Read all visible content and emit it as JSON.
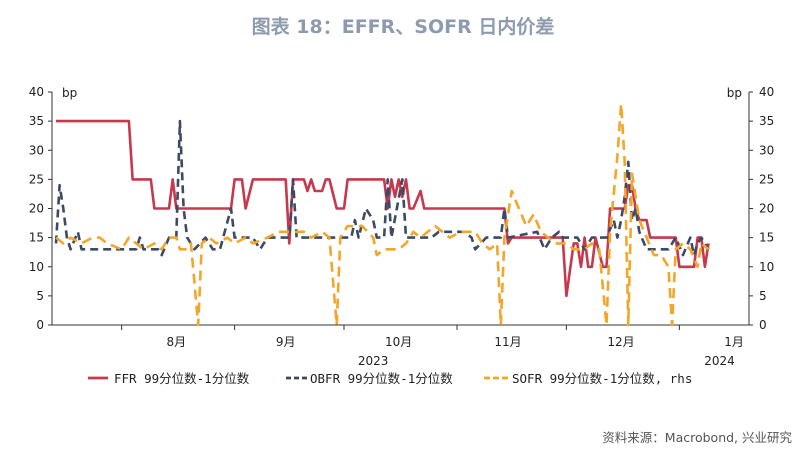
{
  "chart_data": {
    "type": "line",
    "title": "图表 18：EFFR、SOFR 日内价差",
    "unit_left": "bp",
    "unit_right": "bp",
    "y_left": {
      "min": 0,
      "max": 40,
      "ticks": [
        0,
        5,
        10,
        15,
        20,
        25,
        30,
        35,
        40
      ]
    },
    "y_right": {
      "min": 0,
      "max": 40,
      "ticks": [
        0,
        5,
        10,
        15,
        20,
        25,
        30,
        35,
        40
      ]
    },
    "x_range": [
      "2023-07-14",
      "2024-01-19"
    ],
    "month_labels": [
      {
        "label": "8月",
        "date": "2023-08-16"
      },
      {
        "label": "9月",
        "date": "2023-09-15"
      },
      {
        "label": "10月",
        "date": "2023-10-16"
      },
      {
        "label": "11月",
        "date": "2023-11-15"
      },
      {
        "label": "12月",
        "date": "2023-12-16"
      },
      {
        "label": "1月",
        "date": "2024-01-16"
      }
    ],
    "month_ticks": [
      "2023-08-01",
      "2023-09-01",
      "2023-10-01",
      "2023-11-01",
      "2023-12-01",
      "2024-01-01"
    ],
    "year_labels": [
      {
        "label": "2023",
        "date": "2023-10-09"
      },
      {
        "label": "2024",
        "date": "2024-01-12"
      }
    ],
    "series": [
      {
        "name": "FFR 99分位数-1分位数",
        "color": "#c8384d",
        "dash": "solid",
        "axis": "left",
        "points": [
          [
            "2023-07-14",
            35
          ],
          [
            "2023-07-31",
            35
          ],
          [
            "2023-08-03",
            35
          ],
          [
            "2023-08-04",
            25
          ],
          [
            "2023-08-08",
            25
          ],
          [
            "2023-08-09",
            25
          ],
          [
            "2023-08-10",
            20
          ],
          [
            "2023-08-14",
            20
          ],
          [
            "2023-08-15",
            25
          ],
          [
            "2023-08-16",
            20
          ],
          [
            "2023-08-22",
            20
          ],
          [
            "2023-08-31",
            20
          ],
          [
            "2023-09-01",
            25
          ],
          [
            "2023-09-03",
            25
          ],
          [
            "2023-09-04",
            20
          ],
          [
            "2023-09-06",
            25
          ],
          [
            "2023-09-15",
            25
          ],
          [
            "2023-09-16",
            14
          ],
          [
            "2023-09-17",
            25
          ],
          [
            "2023-09-20",
            25
          ],
          [
            "2023-09-21",
            23
          ],
          [
            "2023-09-22",
            25
          ],
          [
            "2023-09-23",
            23
          ],
          [
            "2023-09-25",
            23
          ],
          [
            "2023-09-26",
            25
          ],
          [
            "2023-09-27",
            25
          ],
          [
            "2023-09-29",
            20
          ],
          [
            "2023-10-01",
            20
          ],
          [
            "2023-10-02",
            25
          ],
          [
            "2023-10-12",
            25
          ],
          [
            "2023-10-13",
            20
          ],
          [
            "2023-10-14",
            25
          ],
          [
            "2023-10-15",
            22
          ],
          [
            "2023-10-16",
            25
          ],
          [
            "2023-10-17",
            22
          ],
          [
            "2023-10-18",
            25
          ],
          [
            "2023-10-19",
            20
          ],
          [
            "2023-10-20",
            20
          ],
          [
            "2023-10-22",
            23
          ],
          [
            "2023-10-23",
            20
          ],
          [
            "2023-11-13",
            20
          ],
          [
            "2023-11-14",
            20
          ],
          [
            "2023-11-15",
            14
          ],
          [
            "2023-11-16",
            15
          ],
          [
            "2023-11-30",
            15
          ],
          [
            "2023-12-01",
            5
          ],
          [
            "2023-12-03",
            14
          ],
          [
            "2023-12-04",
            14
          ],
          [
            "2023-12-05",
            10
          ],
          [
            "2023-12-06",
            15
          ],
          [
            "2023-12-07",
            10
          ],
          [
            "2023-12-08",
            10
          ],
          [
            "2023-12-09",
            15
          ],
          [
            "2023-12-11",
            10
          ],
          [
            "2023-12-12",
            10
          ],
          [
            "2023-12-13",
            20
          ],
          [
            "2023-12-17",
            20
          ],
          [
            "2023-12-18",
            24
          ],
          [
            "2023-12-19",
            24
          ],
          [
            "2023-12-20",
            20
          ],
          [
            "2023-12-21",
            18
          ],
          [
            "2023-12-23",
            18
          ],
          [
            "2023-12-24",
            15
          ],
          [
            "2023-12-31",
            15
          ],
          [
            "2024-01-01",
            10
          ],
          [
            "2024-01-05",
            10
          ],
          [
            "2024-01-06",
            15
          ],
          [
            "2024-01-07",
            15
          ],
          [
            "2024-01-08",
            10
          ],
          [
            "2024-01-09",
            14
          ]
        ]
      },
      {
        "name": "OBFR 99分位数-1分位数",
        "color": "#3d4a63",
        "dash": "8,5",
        "axis": "left",
        "points": [
          [
            "2023-07-14",
            14
          ],
          [
            "2023-07-15",
            24
          ],
          [
            "2023-07-16",
            20
          ],
          [
            "2023-07-17",
            15
          ],
          [
            "2023-07-18",
            13
          ],
          [
            "2023-07-20",
            16
          ],
          [
            "2023-07-21",
            13
          ],
          [
            "2023-07-25",
            13
          ],
          [
            "2023-08-05",
            13
          ],
          [
            "2023-08-06",
            15
          ],
          [
            "2023-08-07",
            13
          ],
          [
            "2023-08-11",
            13
          ],
          [
            "2023-08-12",
            12
          ],
          [
            "2023-08-14",
            15
          ],
          [
            "2023-08-16",
            15
          ],
          [
            "2023-08-17",
            35
          ],
          [
            "2023-08-18",
            20
          ],
          [
            "2023-08-19",
            15
          ],
          [
            "2023-08-21",
            13
          ],
          [
            "2023-08-24",
            15
          ],
          [
            "2023-08-26",
            13
          ],
          [
            "2023-08-28",
            13
          ],
          [
            "2023-08-31",
            20
          ],
          [
            "2023-09-01",
            15
          ],
          [
            "2023-09-06",
            15
          ],
          [
            "2023-09-08",
            13
          ],
          [
            "2023-09-10",
            15
          ],
          [
            "2023-09-15",
            15
          ],
          [
            "2023-09-16",
            15
          ],
          [
            "2023-09-17",
            25
          ],
          [
            "2023-09-18",
            15
          ],
          [
            "2023-10-03",
            15
          ],
          [
            "2023-10-04",
            18
          ],
          [
            "2023-10-05",
            15
          ],
          [
            "2023-10-07",
            20
          ],
          [
            "2023-10-09",
            18
          ],
          [
            "2023-10-10",
            15
          ],
          [
            "2023-10-12",
            15
          ],
          [
            "2023-10-13",
            25
          ],
          [
            "2023-10-14",
            15
          ],
          [
            "2023-10-17",
            25
          ],
          [
            "2023-10-18",
            15
          ],
          [
            "2023-10-25",
            15
          ],
          [
            "2023-10-27",
            16
          ],
          [
            "2023-11-03",
            16
          ],
          [
            "2023-11-05",
            15
          ],
          [
            "2023-11-06",
            13
          ],
          [
            "2023-11-09",
            15
          ],
          [
            "2023-11-13",
            15
          ],
          [
            "2023-11-14",
            20
          ],
          [
            "2023-11-15",
            15
          ],
          [
            "2023-11-23",
            16
          ],
          [
            "2023-11-25",
            13
          ],
          [
            "2023-11-27",
            15
          ],
          [
            "2023-11-29",
            16
          ],
          [
            "2023-11-30",
            15
          ],
          [
            "2023-12-04",
            15
          ],
          [
            "2023-12-06",
            13
          ],
          [
            "2023-12-07",
            14
          ],
          [
            "2023-12-08",
            15
          ],
          [
            "2023-12-12",
            15
          ],
          [
            "2023-12-14",
            18
          ],
          [
            "2023-12-15",
            15
          ],
          [
            "2023-12-16",
            18
          ],
          [
            "2023-12-17",
            22
          ],
          [
            "2023-12-18",
            28
          ],
          [
            "2023-12-19",
            18
          ],
          [
            "2023-12-20",
            20
          ],
          [
            "2023-12-21",
            16
          ],
          [
            "2023-12-23",
            13
          ],
          [
            "2023-12-29",
            13
          ],
          [
            "2023-12-31",
            15
          ],
          [
            "2024-01-02",
            12
          ],
          [
            "2024-01-04",
            15
          ],
          [
            "2024-01-05",
            12
          ],
          [
            "2024-01-06",
            14
          ],
          [
            "2024-01-07",
            15
          ],
          [
            "2024-01-09",
            13
          ]
        ]
      },
      {
        "name": "SOFR 99分位数-1分位数, rhs",
        "color": "#f2a62a",
        "dash": "10,6",
        "axis": "right",
        "points": [
          [
            "2023-07-14",
            15
          ],
          [
            "2023-07-16",
            14
          ],
          [
            "2023-07-18",
            15
          ],
          [
            "2023-07-21",
            14
          ],
          [
            "2023-07-24",
            15
          ],
          [
            "2023-07-26",
            15
          ],
          [
            "2023-07-28",
            14
          ],
          [
            "2023-08-01",
            13
          ],
          [
            "2023-08-03",
            15
          ],
          [
            "2023-08-05",
            14
          ],
          [
            "2023-08-07",
            13
          ],
          [
            "2023-08-10",
            14
          ],
          [
            "2023-08-12",
            13
          ],
          [
            "2023-08-14",
            15
          ],
          [
            "2023-08-16",
            15
          ],
          [
            "2023-08-17",
            13
          ],
          [
            "2023-08-19",
            13
          ],
          [
            "2023-08-20",
            14
          ],
          [
            "2023-08-22",
            0
          ],
          [
            "2023-08-23",
            14
          ],
          [
            "2023-08-25",
            15
          ],
          [
            "2023-08-27",
            14
          ],
          [
            "2023-08-30",
            15
          ],
          [
            "2023-09-01",
            14
          ],
          [
            "2023-09-04",
            15
          ],
          [
            "2023-09-06",
            14
          ],
          [
            "2023-09-10",
            15
          ],
          [
            "2023-09-13",
            16
          ],
          [
            "2023-09-17",
            16
          ],
          [
            "2023-09-20",
            16
          ],
          [
            "2023-09-22",
            15
          ],
          [
            "2023-09-25",
            16
          ],
          [
            "2023-09-27",
            15
          ],
          [
            "2023-09-29",
            0
          ],
          [
            "2023-09-30",
            15
          ],
          [
            "2023-10-02",
            17
          ],
          [
            "2023-10-06",
            17
          ],
          [
            "2023-10-09",
            15
          ],
          [
            "2023-10-10",
            12
          ],
          [
            "2023-10-12",
            13
          ],
          [
            "2023-10-16",
            13
          ],
          [
            "2023-10-18",
            14
          ],
          [
            "2023-10-20",
            16
          ],
          [
            "2023-10-22",
            15
          ],
          [
            "2023-10-24",
            16
          ],
          [
            "2023-10-26",
            17
          ],
          [
            "2023-10-28",
            16
          ],
          [
            "2023-10-30",
            15
          ],
          [
            "2023-11-02",
            16
          ],
          [
            "2023-11-06",
            16
          ],
          [
            "2023-11-08",
            14
          ],
          [
            "2023-11-10",
            13
          ],
          [
            "2023-11-12",
            14
          ],
          [
            "2023-11-13",
            0
          ],
          [
            "2023-11-14",
            15
          ],
          [
            "2023-11-16",
            23
          ],
          [
            "2023-11-18",
            20
          ],
          [
            "2023-11-20",
            17
          ],
          [
            "2023-11-22",
            19
          ],
          [
            "2023-11-24",
            16
          ],
          [
            "2023-11-26",
            15
          ],
          [
            "2023-11-28",
            14
          ],
          [
            "2023-12-01",
            14
          ],
          [
            "2023-12-03",
            13
          ],
          [
            "2023-12-06",
            13
          ],
          [
            "2023-12-08",
            14
          ],
          [
            "2023-12-10",
            13
          ],
          [
            "2023-12-12",
            0
          ],
          [
            "2023-12-13",
            16
          ],
          [
            "2023-12-15",
            29
          ],
          [
            "2023-12-16",
            38
          ],
          [
            "2023-12-17",
            28
          ],
          [
            "2023-12-18",
            0
          ],
          [
            "2023-12-19",
            26
          ],
          [
            "2023-12-21",
            18
          ],
          [
            "2023-12-23",
            15
          ],
          [
            "2023-12-25",
            12
          ],
          [
            "2023-12-27",
            12
          ],
          [
            "2023-12-29",
            10
          ],
          [
            "2023-12-30",
            0
          ],
          [
            "2023-12-31",
            13
          ],
          [
            "2024-01-02",
            14
          ],
          [
            "2024-01-04",
            13
          ],
          [
            "2024-01-06",
            10
          ],
          [
            "2024-01-07",
            14
          ],
          [
            "2024-01-09",
            13
          ]
        ]
      }
    ],
    "legend_placement": "bottom",
    "source": "资料来源：Macrobond, 兴业研究"
  }
}
